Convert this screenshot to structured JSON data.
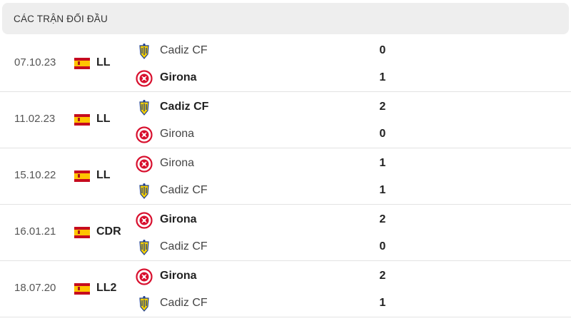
{
  "header": {
    "title": "CÁC TRẬN ĐỐI ĐẦU"
  },
  "matches": [
    {
      "date": "07.10.23",
      "competition": "LL",
      "home": {
        "name": "Cadiz CF",
        "badge": "cadiz-badge-icon",
        "score": "0",
        "winner": false
      },
      "away": {
        "name": "Girona",
        "badge": "girona-badge-icon",
        "score": "1",
        "winner": true
      }
    },
    {
      "date": "11.02.23",
      "competition": "LL",
      "home": {
        "name": "Cadiz CF",
        "badge": "cadiz-badge-icon",
        "score": "2",
        "winner": true
      },
      "away": {
        "name": "Girona",
        "badge": "girona-badge-icon",
        "score": "0",
        "winner": false
      }
    },
    {
      "date": "15.10.22",
      "competition": "LL",
      "home": {
        "name": "Girona",
        "badge": "girona-badge-icon",
        "score": "1",
        "winner": false
      },
      "away": {
        "name": "Cadiz CF",
        "badge": "cadiz-badge-icon",
        "score": "1",
        "winner": false
      }
    },
    {
      "date": "16.01.21",
      "competition": "CDR",
      "home": {
        "name": "Girona",
        "badge": "girona-badge-icon",
        "score": "2",
        "winner": true
      },
      "away": {
        "name": "Cadiz CF",
        "badge": "cadiz-badge-icon",
        "score": "0",
        "winner": false
      }
    },
    {
      "date": "18.07.20",
      "competition": "LL2",
      "home": {
        "name": "Girona",
        "badge": "girona-badge-icon",
        "score": "2",
        "winner": true
      },
      "away": {
        "name": "Cadiz CF",
        "badge": "cadiz-badge-icon",
        "score": "1",
        "winner": false
      }
    }
  ],
  "colors": {
    "header_bg": "#eeeeee",
    "divider": "#e3e3e3",
    "girona_red": "#d8102e",
    "cadiz_yellow": "#f7d000",
    "cadiz_blue": "#1f3f8f"
  }
}
